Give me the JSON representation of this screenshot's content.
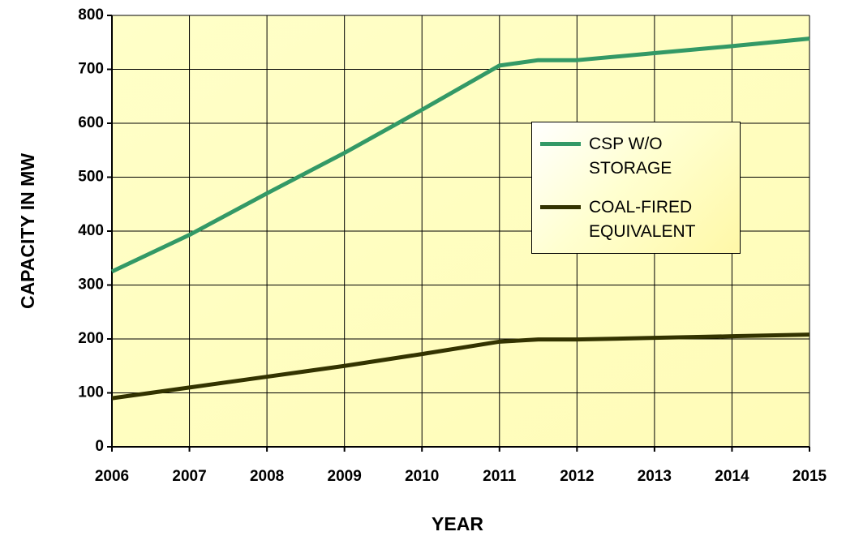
{
  "chart_data": {
    "type": "line",
    "x": [
      2006,
      2007,
      2008,
      2009,
      2010,
      2011,
      2011.5,
      2012,
      2013,
      2014,
      2015
    ],
    "series": [
      {
        "name": "CSP W/O STORAGE",
        "color": "#339966",
        "values": [
          325,
          393,
          470,
          545,
          625,
          707,
          717,
          717,
          730,
          743,
          757
        ]
      },
      {
        "name": "COAL-FIRED EQUIVALENT",
        "color": "#333300",
        "values": [
          90,
          110,
          130,
          150,
          172,
          195,
          199,
          199,
          202,
          205,
          208
        ]
      }
    ],
    "xlabel": "YEAR",
    "ylabel": "CAPACITY IN MW",
    "xlim": [
      2006,
      2015
    ],
    "xticks": [
      2006,
      2007,
      2008,
      2009,
      2010,
      2011,
      2012,
      2013,
      2014,
      2015
    ],
    "ylim": [
      0,
      800
    ],
    "yticks": [
      0,
      100,
      200,
      300,
      400,
      500,
      600,
      700,
      800
    ],
    "grid": true,
    "legend": "right"
  }
}
